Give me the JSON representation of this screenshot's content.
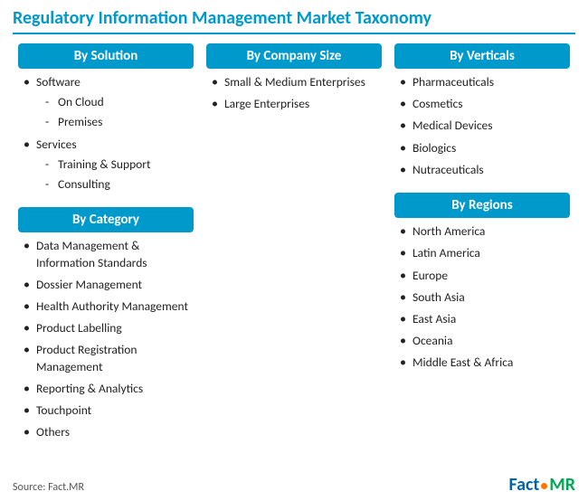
{
  "title": "Regulatory Information Management Market Taxonomy",
  "accent_color": "#0099cc",
  "source": "Source: Fact.MR",
  "logo": {
    "part1": "Fact",
    "part2": "MR",
    "dot_color": "#ff7700",
    "part1_color": "#0066aa",
    "part2_color": "#00aa55"
  },
  "columns": {
    "left": [
      {
        "header": "By Solution",
        "items": [
          {
            "label": "Software",
            "sub": [
              "On Cloud",
              "Premises"
            ]
          },
          {
            "label": "Services",
            "sub": [
              "Training & Support",
              "Consulting"
            ]
          }
        ]
      },
      {
        "header": "By Category",
        "items": [
          {
            "label": "Data Management & Information Standards"
          },
          {
            "label": "Dossier Management"
          },
          {
            "label": "Health Authority Management"
          },
          {
            "label": "Product Labelling"
          },
          {
            "label": "Product Registration Management"
          },
          {
            "label": "Reporting & Analytics"
          },
          {
            "label": "Touchpoint"
          },
          {
            "label": "Others"
          }
        ]
      }
    ],
    "middle": [
      {
        "header": "By Company Size",
        "items": [
          {
            "label": "Small & Medium Enterprises"
          },
          {
            "label": "Large Enterprises"
          }
        ]
      }
    ],
    "right": [
      {
        "header": "By Verticals",
        "items": [
          {
            "label": "Pharmaceuticals"
          },
          {
            "label": "Cosmetics"
          },
          {
            "label": "Medical Devices"
          },
          {
            "label": "Biologics"
          },
          {
            "label": "Nutraceuticals"
          }
        ]
      },
      {
        "header": "By Regions",
        "items": [
          {
            "label": "North America"
          },
          {
            "label": "Latin America"
          },
          {
            "label": "Europe"
          },
          {
            "label": "South Asia"
          },
          {
            "label": "East Asia"
          },
          {
            "label": "Oceania"
          },
          {
            "label": "Middle East & Africa"
          }
        ]
      }
    ]
  }
}
